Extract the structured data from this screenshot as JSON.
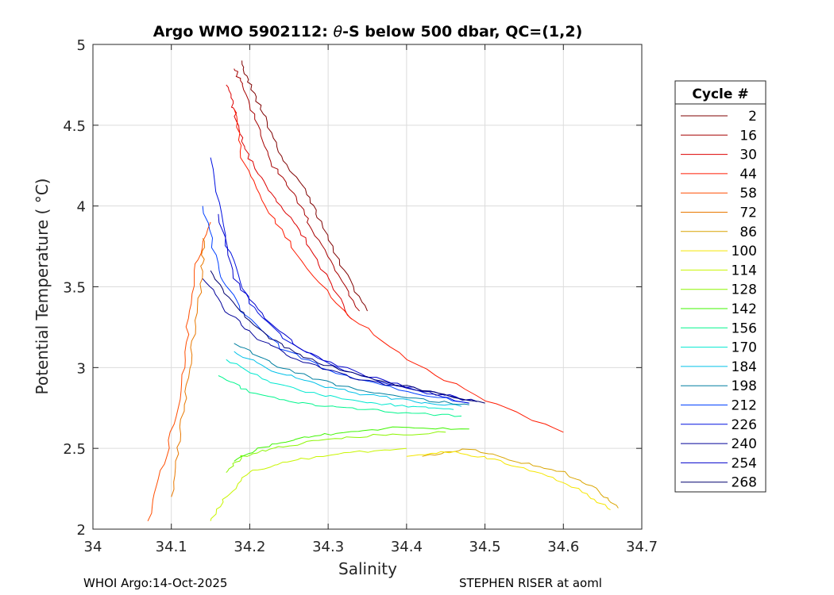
{
  "chart_data": {
    "type": "line",
    "title_prefix": "Argo WMO 5902112: ",
    "title_theta": "θ",
    "title_suffix": "-S below 500 dbar,  QC=(1,2)",
    "xlabel": "Salinity",
    "ylabel": "Potential Temperature ( °C)",
    "xlim": [
      34.0,
      34.7
    ],
    "ylim": [
      2.0,
      5.0
    ],
    "xticks": [
      34,
      34.1,
      34.2,
      34.3,
      34.4,
      34.5,
      34.6,
      34.7
    ],
    "xtick_labels": [
      "34",
      "34.1",
      "34.2",
      "34.3",
      "34.4",
      "34.5",
      "34.6",
      "34.7"
    ],
    "yticks": [
      2,
      2.5,
      3,
      3.5,
      4,
      4.5,
      5
    ],
    "ytick_labels": [
      "2",
      "2.5",
      "3",
      "3.5",
      "4",
      "4.5",
      "5"
    ],
    "grid": true,
    "legend_title": "Cycle #",
    "legend_position": "right-outside",
    "series": [
      {
        "name": "2",
        "color": "#7f0000",
        "x": [
          34.35,
          34.32,
          34.29,
          34.27,
          34.24,
          34.22,
          34.2,
          34.19
        ],
        "y": [
          3.35,
          3.6,
          3.9,
          4.1,
          4.3,
          4.55,
          4.75,
          4.9
        ]
      },
      {
        "name": "16",
        "color": "#a60000",
        "x": [
          34.34,
          34.31,
          34.28,
          34.26,
          34.23,
          34.21,
          34.19,
          34.18
        ],
        "y": [
          3.35,
          3.6,
          3.85,
          4.05,
          4.25,
          4.5,
          4.75,
          4.85
        ]
      },
      {
        "name": "30",
        "color": "#dd0000",
        "x": [
          34.33,
          34.3,
          34.27,
          34.24,
          34.21,
          34.19,
          34.18,
          34.17
        ],
        "y": [
          3.3,
          3.55,
          3.8,
          4.0,
          4.2,
          4.4,
          4.6,
          4.75
        ]
      },
      {
        "name": "44",
        "color": "#ff1a00",
        "x": [
          34.6,
          34.5,
          34.4,
          34.32,
          34.26,
          34.22,
          34.19,
          34.18
        ],
        "y": [
          2.6,
          2.8,
          3.05,
          3.35,
          3.7,
          4.0,
          4.3,
          4.6
        ]
      },
      {
        "name": "58",
        "color": "#ff4d00",
        "x": [
          34.07,
          34.09,
          34.11,
          34.12,
          34.13,
          34.15
        ],
        "y": [
          2.05,
          2.4,
          2.8,
          3.2,
          3.6,
          3.9
        ]
      },
      {
        "name": "72",
        "color": "#e87800",
        "x": [
          34.1,
          34.11,
          34.12,
          34.13,
          34.14,
          34.14
        ],
        "y": [
          2.2,
          2.55,
          2.9,
          3.25,
          3.6,
          3.8
        ]
      },
      {
        "name": "86",
        "color": "#d9a400",
        "x": [
          34.42,
          34.48,
          34.54,
          34.6,
          34.64,
          34.67
        ],
        "y": [
          2.45,
          2.5,
          2.42,
          2.35,
          2.25,
          2.13
        ]
      },
      {
        "name": "100",
        "color": "#f5e600",
        "x": [
          34.4,
          34.46,
          34.52,
          34.58,
          34.63,
          34.66
        ],
        "y": [
          2.45,
          2.48,
          2.42,
          2.33,
          2.22,
          2.12
        ]
      },
      {
        "name": "114",
        "color": "#c8f500",
        "x": [
          34.15,
          34.17,
          34.2,
          34.25,
          34.32,
          34.4
        ],
        "y": [
          2.05,
          2.2,
          2.35,
          2.42,
          2.47,
          2.5
        ]
      },
      {
        "name": "128",
        "color": "#8cf500",
        "x": [
          34.17,
          34.19,
          34.23,
          34.29,
          34.36,
          34.45
        ],
        "y": [
          2.35,
          2.45,
          2.5,
          2.55,
          2.58,
          2.6
        ]
      },
      {
        "name": "142",
        "color": "#3ff500",
        "x": [
          34.18,
          34.21,
          34.26,
          34.32,
          34.39,
          34.48
        ],
        "y": [
          2.42,
          2.5,
          2.56,
          2.6,
          2.63,
          2.62
        ]
      },
      {
        "name": "156",
        "color": "#00f58c",
        "x": [
          34.16,
          34.2,
          34.26,
          34.33,
          34.4,
          34.47
        ],
        "y": [
          2.95,
          2.85,
          2.78,
          2.75,
          2.72,
          2.7
        ]
      },
      {
        "name": "170",
        "color": "#00e8d0",
        "x": [
          34.17,
          34.22,
          34.28,
          34.34,
          34.4,
          34.46
        ],
        "y": [
          3.05,
          2.92,
          2.84,
          2.79,
          2.76,
          2.74
        ]
      },
      {
        "name": "184",
        "color": "#00c0e8",
        "x": [
          34.18,
          34.23,
          34.29,
          34.35,
          34.41,
          34.47
        ],
        "y": [
          3.1,
          2.98,
          2.89,
          2.83,
          2.79,
          2.76
        ]
      },
      {
        "name": "198",
        "color": "#007fa0",
        "x": [
          34.18,
          34.23,
          34.29,
          34.35,
          34.42,
          34.48
        ],
        "y": [
          3.15,
          3.02,
          2.92,
          2.85,
          2.8,
          2.77
        ]
      },
      {
        "name": "212",
        "color": "#0040ff",
        "x": [
          34.14,
          34.16,
          34.19,
          34.24,
          34.31,
          34.4,
          34.48
        ],
        "y": [
          4.0,
          3.6,
          3.35,
          3.12,
          2.96,
          2.85,
          2.78
        ]
      },
      {
        "name": "226",
        "color": "#0010e0",
        "x": [
          34.15,
          34.17,
          34.2,
          34.25,
          34.32,
          34.41,
          34.48
        ],
        "y": [
          4.3,
          3.75,
          3.4,
          3.15,
          2.98,
          2.86,
          2.78
        ]
      },
      {
        "name": "240",
        "color": "#000099",
        "x": [
          34.14,
          34.17,
          34.21,
          34.26,
          34.33,
          34.42,
          34.49
        ],
        "y": [
          3.55,
          3.35,
          3.18,
          3.05,
          2.94,
          2.85,
          2.79
        ]
      },
      {
        "name": "254",
        "color": "#0000cc",
        "x": [
          34.16,
          34.18,
          34.22,
          34.27,
          34.34,
          34.42,
          34.49
        ],
        "y": [
          3.95,
          3.55,
          3.3,
          3.1,
          2.96,
          2.86,
          2.79
        ]
      },
      {
        "name": "268",
        "color": "#00006e",
        "x": [
          34.15,
          34.18,
          34.22,
          34.27,
          34.34,
          34.42,
          34.5
        ],
        "y": [
          3.6,
          3.38,
          3.2,
          3.06,
          2.95,
          2.86,
          2.78
        ]
      }
    ]
  },
  "footer": {
    "left": "WHOI Argo:14-Oct-2025",
    "right": "STEPHEN RISER at aoml"
  }
}
